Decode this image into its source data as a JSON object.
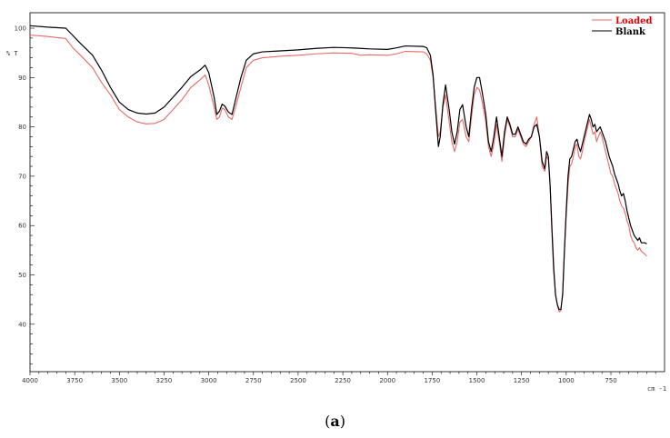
{
  "chart_data": {
    "type": "line",
    "title": "",
    "ylabel": "% T",
    "xlabel": "cm -1",
    "xlim": [
      4000,
      450
    ],
    "ylim": [
      30,
      100
    ],
    "x_ticks": [
      4000,
      3750,
      3500,
      3250,
      3000,
      2750,
      2500,
      2250,
      2000,
      1750,
      1500,
      1250,
      1000,
      750
    ],
    "y_ticks": [
      100,
      90,
      80,
      70,
      60,
      50,
      40
    ],
    "grid": false,
    "legend_position": "top-right",
    "series": [
      {
        "name": "Loaded",
        "color": "#e86a6a",
        "points": [
          [
            4000,
            98.6
          ],
          [
            3900,
            98.3
          ],
          [
            3800,
            97.9
          ],
          [
            3760,
            96.0
          ],
          [
            3720,
            94.6
          ],
          [
            3650,
            92.0
          ],
          [
            3600,
            89.0
          ],
          [
            3550,
            86.5
          ],
          [
            3500,
            83.5
          ],
          [
            3450,
            82.0
          ],
          [
            3400,
            81.0
          ],
          [
            3350,
            80.6
          ],
          [
            3300,
            80.7
          ],
          [
            3250,
            81.5
          ],
          [
            3200,
            83.5
          ],
          [
            3150,
            85.5
          ],
          [
            3100,
            88.0
          ],
          [
            3050,
            89.5
          ],
          [
            3020,
            90.5
          ],
          [
            3000,
            88.5
          ],
          [
            2970,
            84.0
          ],
          [
            2955,
            81.5
          ],
          [
            2940,
            82.0
          ],
          [
            2925,
            83.8
          ],
          [
            2910,
            83.5
          ],
          [
            2890,
            82.0
          ],
          [
            2870,
            81.5
          ],
          [
            2850,
            84.0
          ],
          [
            2820,
            88.0
          ],
          [
            2790,
            92.0
          ],
          [
            2750,
            93.5
          ],
          [
            2700,
            94.0
          ],
          [
            2600,
            94.3
          ],
          [
            2500,
            94.5
          ],
          [
            2400,
            94.8
          ],
          [
            2300,
            95.0
          ],
          [
            2200,
            94.9
          ],
          [
            2150,
            94.5
          ],
          [
            2100,
            94.6
          ],
          [
            2000,
            94.5
          ],
          [
            1950,
            94.8
          ],
          [
            1900,
            95.3
          ],
          [
            1800,
            95.2
          ],
          [
            1780,
            94.8
          ],
          [
            1760,
            93.5
          ],
          [
            1745,
            90.0
          ],
          [
            1730,
            84.0
          ],
          [
            1715,
            78.0
          ],
          [
            1705,
            79.0
          ],
          [
            1690,
            84.0
          ],
          [
            1675,
            86.5
          ],
          [
            1655,
            81.0
          ],
          [
            1640,
            77.0
          ],
          [
            1625,
            75.0
          ],
          [
            1610,
            77.0
          ],
          [
            1595,
            81.0
          ],
          [
            1580,
            81.5
          ],
          [
            1560,
            78.0
          ],
          [
            1545,
            77.0
          ],
          [
            1530,
            82.0
          ],
          [
            1515,
            86.5
          ],
          [
            1500,
            88.0
          ],
          [
            1485,
            87.5
          ],
          [
            1470,
            85.0
          ],
          [
            1450,
            81.0
          ],
          [
            1435,
            76.0
          ],
          [
            1420,
            74.0
          ],
          [
            1405,
            76.5
          ],
          [
            1390,
            80.5
          ],
          [
            1375,
            77.0
          ],
          [
            1360,
            73.0
          ],
          [
            1345,
            78.0
          ],
          [
            1330,
            81.5
          ],
          [
            1315,
            80.0
          ],
          [
            1300,
            78.0
          ],
          [
            1285,
            78.0
          ],
          [
            1270,
            79.5
          ],
          [
            1255,
            78.0
          ],
          [
            1240,
            76.5
          ],
          [
            1225,
            76.0
          ],
          [
            1210,
            77.0
          ],
          [
            1195,
            78.0
          ],
          [
            1180,
            80.5
          ],
          [
            1165,
            82.0
          ],
          [
            1150,
            78.0
          ],
          [
            1135,
            72.0
          ],
          [
            1120,
            71.0
          ],
          [
            1110,
            74.0
          ],
          [
            1100,
            73.5
          ],
          [
            1090,
            68.0
          ],
          [
            1080,
            60.0
          ],
          [
            1070,
            52.0
          ],
          [
            1060,
            46.0
          ],
          [
            1050,
            44.0
          ],
          [
            1040,
            42.5
          ],
          [
            1030,
            42.8
          ],
          [
            1020,
            46.5
          ],
          [
            1010,
            55.0
          ],
          [
            1000,
            62.0
          ],
          [
            990,
            68.0
          ],
          [
            980,
            72.0
          ],
          [
            970,
            72.5
          ],
          [
            960,
            74.0
          ],
          [
            950,
            76.0
          ],
          [
            940,
            76.5
          ],
          [
            930,
            74.0
          ],
          [
            920,
            73.5
          ],
          [
            910,
            75.0
          ],
          [
            900,
            77.0
          ],
          [
            890,
            78.5
          ],
          [
            880,
            80.0
          ],
          [
            870,
            81.5
          ],
          [
            860,
            80.0
          ],
          [
            850,
            78.5
          ],
          [
            840,
            79.0
          ],
          [
            830,
            77.0
          ],
          [
            820,
            78.0
          ],
          [
            810,
            79.0
          ],
          [
            800,
            78.0
          ],
          [
            790,
            76.5
          ],
          [
            780,
            75.0
          ],
          [
            770,
            73.5
          ],
          [
            760,
            72.0
          ],
          [
            750,
            70.5
          ],
          [
            740,
            70.0
          ],
          [
            730,
            68.5
          ],
          [
            720,
            67.5
          ],
          [
            710,
            66.5
          ],
          [
            700,
            65.0
          ],
          [
            690,
            64.0
          ],
          [
            680,
            63.5
          ],
          [
            670,
            62.5
          ],
          [
            660,
            61.0
          ],
          [
            650,
            60.0
          ],
          [
            640,
            58.0
          ],
          [
            630,
            57.0
          ],
          [
            620,
            56.5
          ],
          [
            610,
            55.5
          ],
          [
            600,
            55.0
          ],
          [
            590,
            55.5
          ],
          [
            580,
            54.8
          ],
          [
            560,
            54.2
          ],
          [
            550,
            53.8
          ]
        ]
      },
      {
        "name": "Blank",
        "color": "#000000",
        "points": [
          [
            4000,
            100.5
          ],
          [
            3900,
            100.2
          ],
          [
            3800,
            100.0
          ],
          [
            3760,
            98.5
          ],
          [
            3720,
            97.0
          ],
          [
            3650,
            94.5
          ],
          [
            3600,
            91.5
          ],
          [
            3550,
            88.0
          ],
          [
            3500,
            85.0
          ],
          [
            3450,
            83.5
          ],
          [
            3400,
            82.8
          ],
          [
            3350,
            82.6
          ],
          [
            3300,
            82.8
          ],
          [
            3250,
            84.0
          ],
          [
            3200,
            86.0
          ],
          [
            3150,
            88.0
          ],
          [
            3100,
            90.2
          ],
          [
            3050,
            91.5
          ],
          [
            3020,
            92.5
          ],
          [
            3000,
            91.0
          ],
          [
            2970,
            86.0
          ],
          [
            2955,
            82.5
          ],
          [
            2940,
            83.2
          ],
          [
            2925,
            84.6
          ],
          [
            2910,
            84.2
          ],
          [
            2890,
            83.0
          ],
          [
            2870,
            82.5
          ],
          [
            2850,
            85.5
          ],
          [
            2820,
            90.0
          ],
          [
            2790,
            93.5
          ],
          [
            2750,
            94.8
          ],
          [
            2700,
            95.2
          ],
          [
            2600,
            95.4
          ],
          [
            2500,
            95.6
          ],
          [
            2400,
            95.9
          ],
          [
            2300,
            96.1
          ],
          [
            2200,
            96.0
          ],
          [
            2150,
            95.9
          ],
          [
            2100,
            95.8
          ],
          [
            2000,
            95.7
          ],
          [
            1950,
            96.0
          ],
          [
            1900,
            96.4
          ],
          [
            1800,
            96.3
          ],
          [
            1780,
            96.0
          ],
          [
            1760,
            94.5
          ],
          [
            1745,
            90.5
          ],
          [
            1730,
            83.0
          ],
          [
            1715,
            76.0
          ],
          [
            1705,
            78.0
          ],
          [
            1690,
            84.5
          ],
          [
            1675,
            88.5
          ],
          [
            1655,
            83.5
          ],
          [
            1640,
            79.0
          ],
          [
            1625,
            76.5
          ],
          [
            1610,
            79.0
          ],
          [
            1595,
            83.5
          ],
          [
            1580,
            84.5
          ],
          [
            1560,
            80.0
          ],
          [
            1545,
            78.0
          ],
          [
            1530,
            83.5
          ],
          [
            1515,
            88.0
          ],
          [
            1500,
            90.0
          ],
          [
            1485,
            90.0
          ],
          [
            1470,
            87.0
          ],
          [
            1450,
            82.5
          ],
          [
            1435,
            77.0
          ],
          [
            1420,
            75.0
          ],
          [
            1405,
            78.0
          ],
          [
            1390,
            82.0
          ],
          [
            1375,
            78.0
          ],
          [
            1360,
            74.0
          ],
          [
            1345,
            79.0
          ],
          [
            1330,
            82.0
          ],
          [
            1315,
            80.5
          ],
          [
            1300,
            78.5
          ],
          [
            1285,
            78.5
          ],
          [
            1270,
            80.0
          ],
          [
            1255,
            78.5
          ],
          [
            1240,
            77.0
          ],
          [
            1225,
            76.5
          ],
          [
            1210,
            77.5
          ],
          [
            1195,
            78.0
          ],
          [
            1180,
            80.0
          ],
          [
            1165,
            80.5
          ],
          [
            1150,
            78.0
          ],
          [
            1135,
            73.0
          ],
          [
            1120,
            71.5
          ],
          [
            1110,
            75.0
          ],
          [
            1100,
            74.0
          ],
          [
            1090,
            68.0
          ],
          [
            1080,
            59.0
          ],
          [
            1070,
            51.0
          ],
          [
            1060,
            46.0
          ],
          [
            1050,
            44.0
          ],
          [
            1040,
            43.0
          ],
          [
            1030,
            43.0
          ],
          [
            1020,
            46.0
          ],
          [
            1010,
            55.0
          ],
          [
            1000,
            63.0
          ],
          [
            990,
            70.0
          ],
          [
            980,
            73.5
          ],
          [
            970,
            74.0
          ],
          [
            960,
            75.5
          ],
          [
            950,
            77.0
          ],
          [
            940,
            77.5
          ],
          [
            930,
            76.0
          ],
          [
            920,
            75.0
          ],
          [
            910,
            76.5
          ],
          [
            900,
            78.0
          ],
          [
            890,
            79.5
          ],
          [
            880,
            81.0
          ],
          [
            870,
            82.5
          ],
          [
            860,
            81.5
          ],
          [
            850,
            80.0
          ],
          [
            840,
            80.5
          ],
          [
            830,
            79.0
          ],
          [
            820,
            79.5
          ],
          [
            810,
            80.0
          ],
          [
            800,
            79.0
          ],
          [
            790,
            78.0
          ],
          [
            780,
            77.0
          ],
          [
            770,
            75.5
          ],
          [
            760,
            74.0
          ],
          [
            750,
            73.0
          ],
          [
            740,
            72.0
          ],
          [
            730,
            70.5
          ],
          [
            720,
            69.5
          ],
          [
            710,
            68.5
          ],
          [
            700,
            67.0
          ],
          [
            690,
            66.0
          ],
          [
            680,
            66.5
          ],
          [
            670,
            65.0
          ],
          [
            660,
            63.0
          ],
          [
            650,
            61.5
          ],
          [
            640,
            60.0
          ],
          [
            630,
            59.0
          ],
          [
            620,
            58.0
          ],
          [
            610,
            57.5
          ],
          [
            600,
            57.0
          ],
          [
            590,
            57.5
          ],
          [
            580,
            56.5
          ],
          [
            560,
            56.5
          ],
          [
            550,
            56.3
          ]
        ]
      }
    ]
  },
  "caption": {
    "open": "(",
    "letter": "a",
    "close": ")"
  }
}
